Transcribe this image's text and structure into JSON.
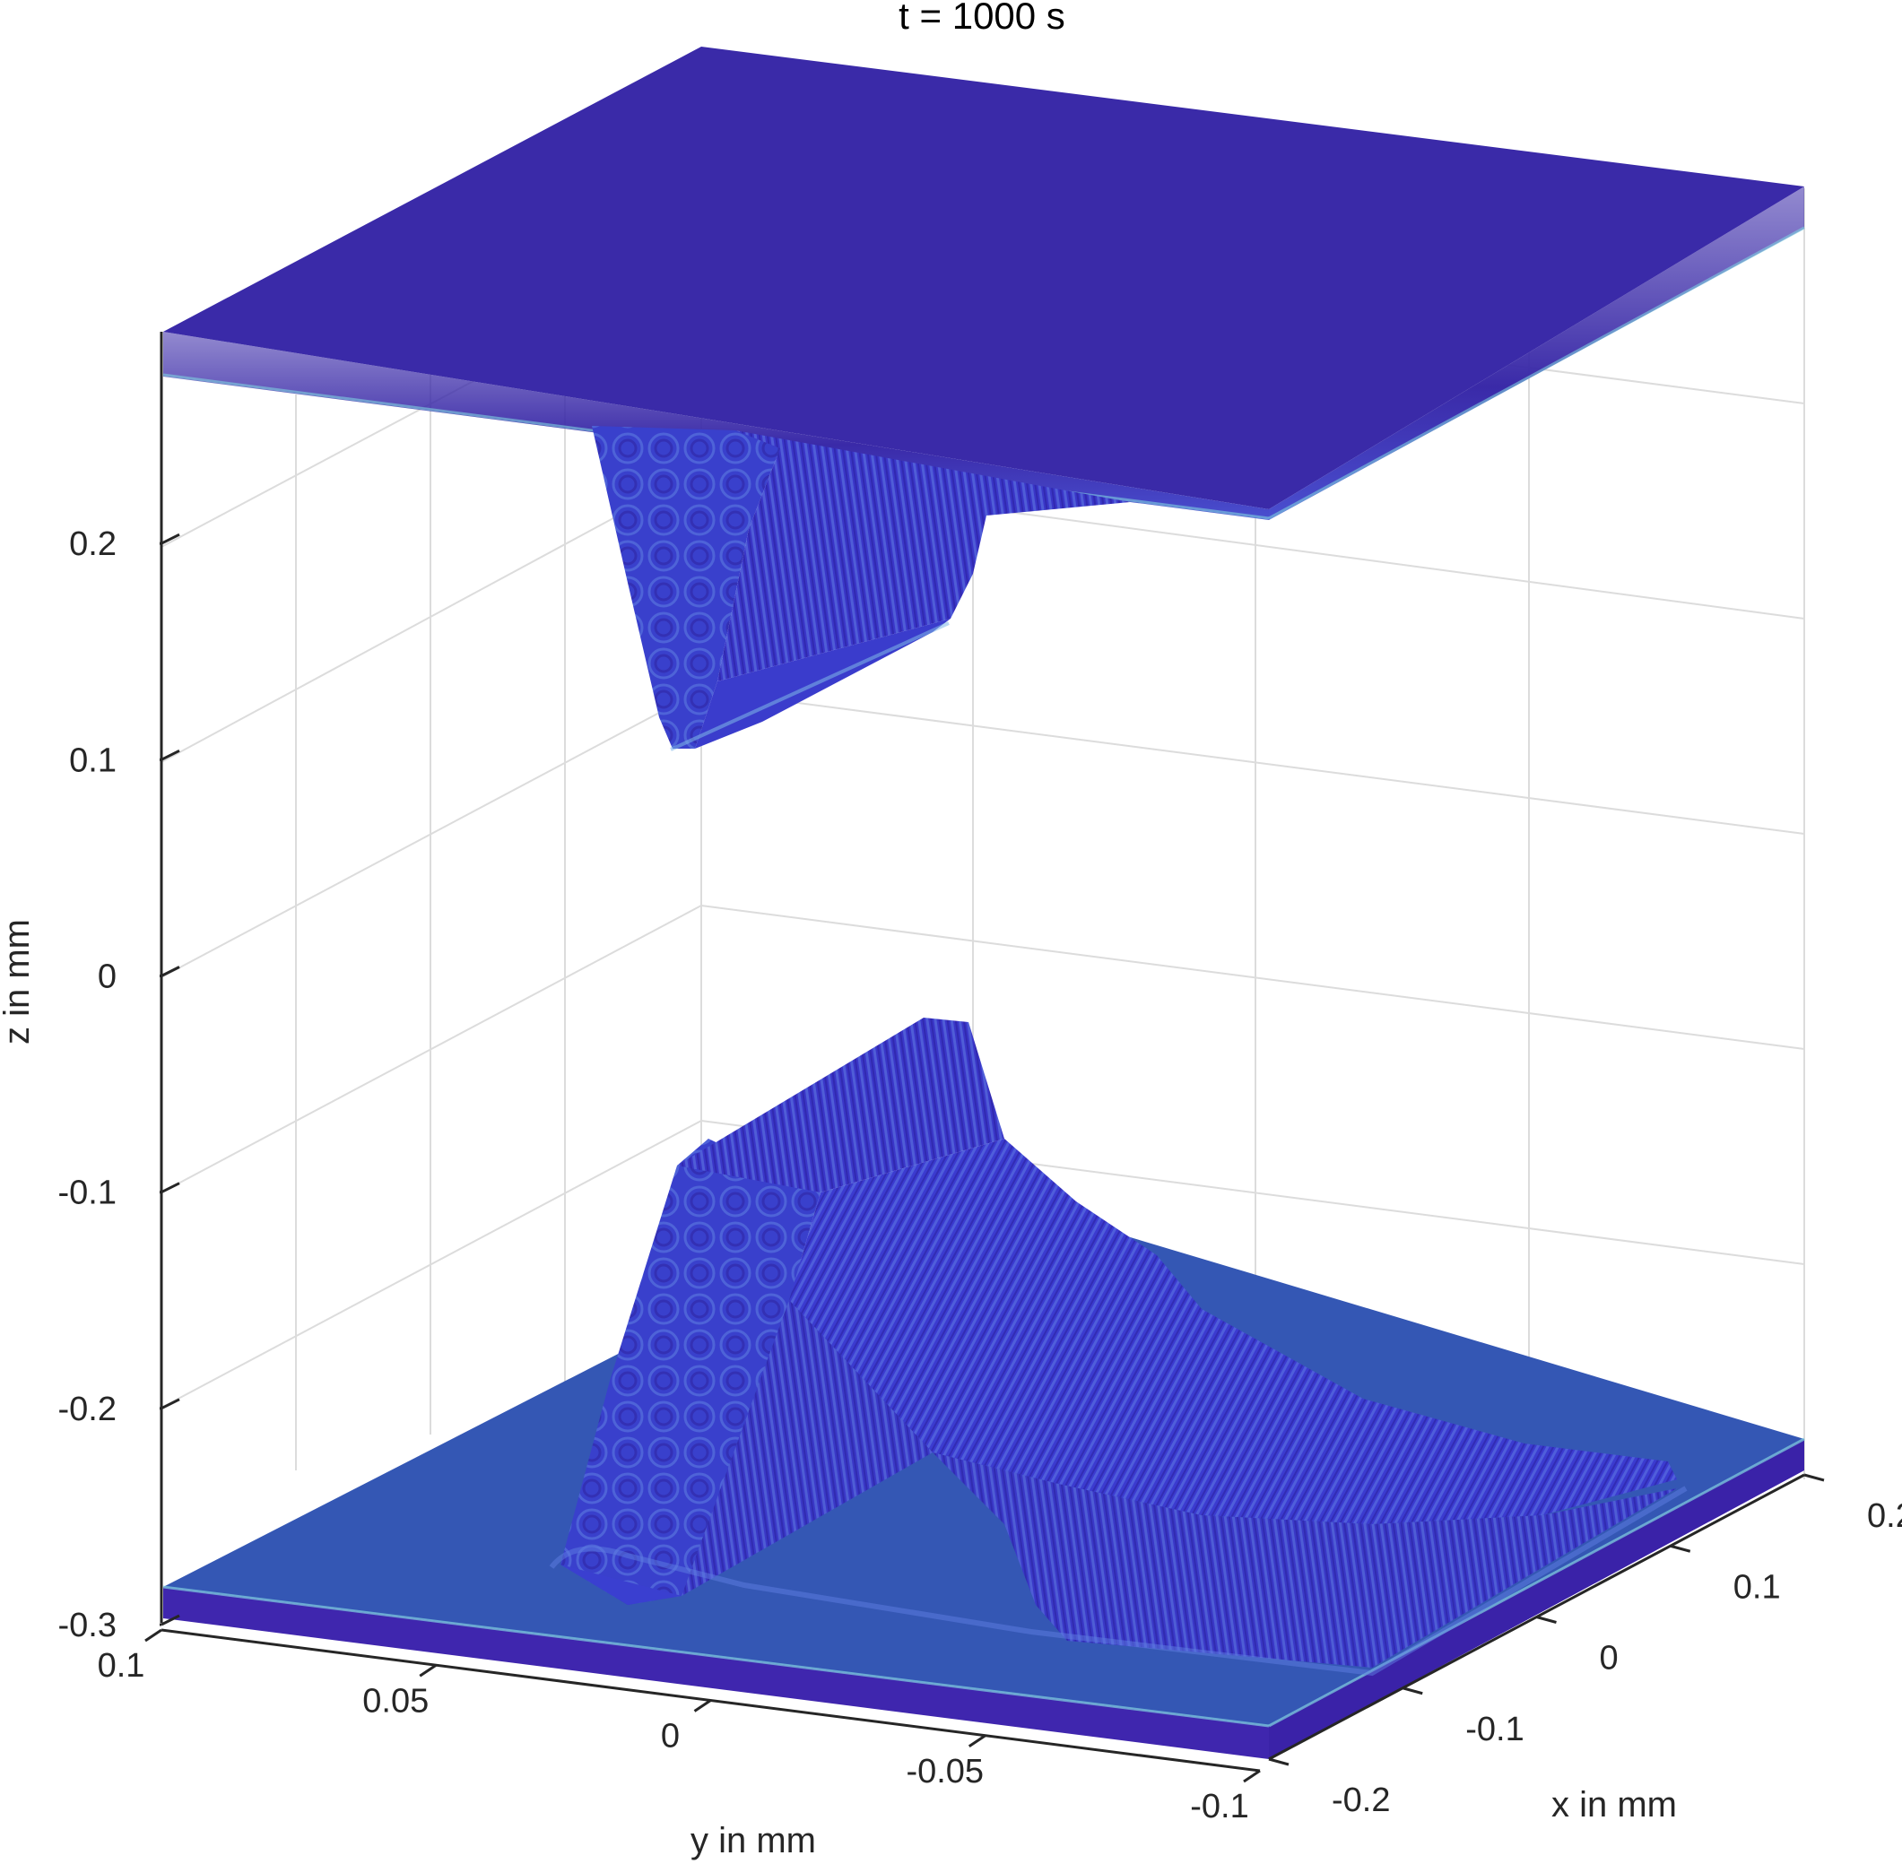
{
  "chart_data": {
    "type": "3d-surface",
    "title": "t = 1000 s",
    "xlabel": "x in mm",
    "ylabel": "y in mm",
    "zlabel": "z in mm",
    "xlim": [
      -0.2,
      0.2
    ],
    "ylim": [
      -0.1,
      0.1
    ],
    "zlim": [
      -0.3,
      0.3
    ],
    "x_ticks": [
      "-0.2",
      "-0.1",
      "0",
      "0.1",
      "0.2"
    ],
    "y_ticks": [
      "0.1",
      "0.05",
      "0",
      "-0.05",
      "-0.1"
    ],
    "z_ticks": [
      "-0.3",
      "-0.2",
      "-0.1",
      "0",
      "0.1",
      "0.2"
    ],
    "grid": true,
    "colors": {
      "top_plate": "#3a2aa8",
      "bottom_plate_top": "#3457b4",
      "bottom_plate_side": "#3f26ae",
      "structure": "#3b3fd2",
      "structure_light": "#5a78e0",
      "structure_dark": "#2f22a6",
      "edge_highlight": "#7fd0e0",
      "grid": "#dcdcdc",
      "axis": "#262626"
    }
  }
}
